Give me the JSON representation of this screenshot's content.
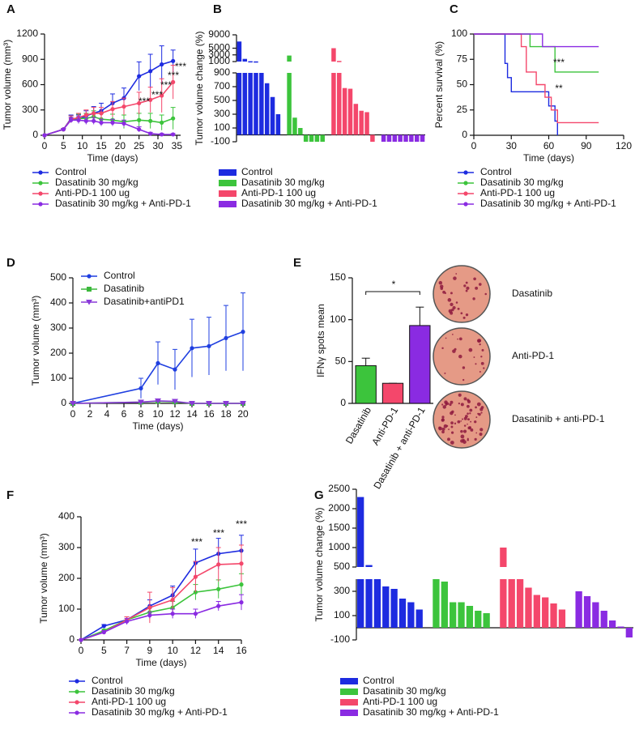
{
  "chart_data": [
    {
      "type": "line",
      "panel": "A",
      "x_label": "Time (days)",
      "y_label": "Tumor volume (mm³)",
      "x": [
        0,
        5,
        7,
        9,
        11,
        13,
        15,
        18,
        21,
        25,
        28,
        31,
        34
      ],
      "xlim": [
        0,
        36
      ],
      "xticks": [
        0,
        5,
        10,
        15,
        20,
        25,
        30,
        35
      ],
      "ylim": [
        0,
        1200
      ],
      "yticks": [
        0,
        300,
        600,
        900,
        1200
      ],
      "legend": "bottom",
      "series": [
        {
          "name": "Control",
          "color": "#1d2be0",
          "values": [
            0,
            70,
            200,
            190,
            230,
            260,
            290,
            380,
            440,
            700,
            760,
            840,
            880
          ],
          "errors": [
            0,
            10,
            40,
            50,
            60,
            80,
            90,
            110,
            120,
            170,
            200,
            220,
            130
          ]
        },
        {
          "name": "Dasatinib 30 mg/kg",
          "color": "#3cc43c",
          "values": [
            0,
            70,
            190,
            200,
            200,
            220,
            190,
            180,
            160,
            180,
            170,
            150,
            200
          ],
          "errors": [
            0,
            10,
            40,
            50,
            60,
            70,
            70,
            70,
            80,
            80,
            90,
            90,
            130
          ]
        },
        {
          "name": "Anti-PD-1 100 ug",
          "color": "#f4476b",
          "values": [
            0,
            70,
            190,
            210,
            240,
            260,
            260,
            310,
            340,
            380,
            420,
            470,
            630
          ],
          "errors": [
            0,
            10,
            40,
            50,
            60,
            70,
            70,
            90,
            100,
            130,
            150,
            200,
            200
          ]
        },
        {
          "name": "Dasatinib 30 mg/kg + Anti-PD-1",
          "color": "#8a2be2",
          "values": [
            0,
            70,
            180,
            180,
            170,
            170,
            150,
            150,
            140,
            70,
            20,
            10,
            10
          ],
          "errors": [
            0,
            10,
            30,
            40,
            40,
            40,
            40,
            40,
            40,
            30,
            15,
            10,
            10
          ]
        }
      ],
      "annotations": [
        "***",
        "***",
        "***",
        "***",
        "***"
      ]
    },
    {
      "type": "waterfall",
      "panel": "B",
      "y_label": "Tumor volume change (%)",
      "legend": "bottom",
      "y_segments": [
        {
          "ylim": [
            -100,
            900
          ],
          "yticks": [
            -100,
            100,
            300,
            500,
            700,
            900
          ]
        },
        {
          "ylim": [
            1000,
            9000
          ],
          "yticks": [
            1000,
            3000,
            5000,
            9000
          ]
        }
      ],
      "series": [
        {
          "name": "Control",
          "color": "#1d2be0",
          "values": [
            7000,
            1800,
            1100,
            1050,
            900,
            750,
            550,
            300
          ]
        },
        {
          "name": "Dasatinib 30 mg/kg",
          "color": "#3cc43c",
          "values": [
            2800,
            250,
            100,
            -100,
            -100,
            -100,
            -100
          ]
        },
        {
          "name": "Anti-PD-1 100 ug",
          "color": "#f4476b",
          "values": [
            5000,
            1200,
            680,
            670,
            450,
            350,
            330,
            -100
          ]
        },
        {
          "name": "Dasatinib 30 mg/kg + Anti-PD-1",
          "color": "#8a2be2",
          "values": [
            -100,
            -100,
            -100,
            -100,
            -100,
            -100,
            -100,
            -100
          ]
        }
      ]
    },
    {
      "type": "step",
      "panel": "C",
      "x_label": "Time (days)",
      "y_label": "Percent survival (%)",
      "xlim": [
        0,
        120
      ],
      "xticks": [
        0,
        30,
        60,
        90,
        120
      ],
      "ylim": [
        0,
        100
      ],
      "yticks": [
        0,
        25,
        50,
        75,
        100
      ],
      "legend": "bottom",
      "series": [
        {
          "name": "Control",
          "color": "#1d2be0",
          "x": [
            0,
            25,
            27,
            30,
            60,
            65,
            67
          ],
          "values": [
            100,
            71,
            57,
            43,
            29,
            14,
            0
          ]
        },
        {
          "name": "Dasatinib 30 mg/kg",
          "color": "#3cc43c",
          "x": [
            0,
            45,
            65,
            100
          ],
          "values": [
            100,
            87.5,
            62.5,
            62.5
          ]
        },
        {
          "name": "Anti-PD-1 100 ug",
          "color": "#f4476b",
          "x": [
            0,
            38,
            42,
            50,
            57,
            62,
            67,
            100
          ],
          "values": [
            100,
            87.5,
            62.5,
            50,
            37.5,
            25,
            12.5,
            12.5
          ]
        },
        {
          "name": "Dasatinib 30 mg/kg + Anti-PD-1",
          "color": "#8a2be2",
          "x": [
            0,
            55,
            100
          ],
          "values": [
            100,
            87.5,
            87.5
          ]
        }
      ],
      "annotations": [
        "***",
        "**"
      ]
    },
    {
      "type": "line",
      "panel": "D",
      "x_label": "Time (days)",
      "y_label": "Tumor volume (mm³)",
      "x": [
        0,
        8,
        10,
        12,
        14,
        16,
        18,
        20
      ],
      "xlim": [
        0,
        20
      ],
      "xticks": [
        0,
        2,
        4,
        6,
        8,
        10,
        12,
        14,
        16,
        18,
        20
      ],
      "ylim": [
        0,
        500
      ],
      "yticks": [
        0,
        100,
        200,
        300,
        400,
        500
      ],
      "legend": "top-left",
      "series": [
        {
          "name": "Control",
          "color": "#1f3fe0",
          "marker": "circle",
          "values": [
            0,
            60,
            160,
            135,
            220,
            228,
            260,
            285
          ],
          "errors": [
            0,
            40,
            85,
            80,
            115,
            115,
            130,
            155
          ]
        },
        {
          "name": "Dasatinib",
          "color": "#3cb83c",
          "marker": "square",
          "values": [
            0,
            5,
            8,
            6,
            0,
            0,
            0,
            0
          ],
          "errors": [
            0,
            3,
            5,
            4,
            0,
            0,
            0,
            0
          ]
        },
        {
          "name": "Dasatinib+antiPD1",
          "color": "#8a3ad8",
          "marker": "triangle",
          "values": [
            0,
            5,
            10,
            8,
            0,
            0,
            0,
            0
          ],
          "errors": [
            0,
            3,
            6,
            5,
            0,
            0,
            0,
            0
          ]
        }
      ]
    },
    {
      "type": "bar",
      "panel": "E",
      "y_label": "IFNγ spots mean",
      "categories": [
        "Dasatinib",
        "Anti-PD-1",
        "Dasatinib + anti-PD-1"
      ],
      "values": [
        45,
        24,
        93
      ],
      "errors": [
        9,
        0,
        22
      ],
      "colors": [
        "#3cc43c",
        "#f4476b",
        "#8a2be2"
      ],
      "ylim": [
        0,
        150
      ],
      "yticks": [
        0,
        50,
        100,
        150
      ],
      "annotations": [
        "*"
      ],
      "images": [
        "Dasatinib",
        "Anti-PD-1",
        "Dasatinib + anti-PD-1"
      ]
    },
    {
      "type": "line",
      "panel": "F",
      "x_label": "Time (days)",
      "y_label": "Tumor volume (mm³)",
      "categories": [
        "0",
        "5",
        "7",
        "9",
        "10",
        "12",
        "14",
        "16"
      ],
      "ylim": [
        0,
        400
      ],
      "yticks": [
        0,
        100,
        200,
        300,
        400
      ],
      "legend": "bottom",
      "series": [
        {
          "name": "Control",
          "color": "#1d2be0",
          "values": [
            0,
            45,
            65,
            110,
            145,
            250,
            280,
            290
          ],
          "errors": [
            0,
            5,
            10,
            20,
            30,
            45,
            50,
            50
          ]
        },
        {
          "name": "Dasatinib 30 mg/kg",
          "color": "#3cc43c",
          "values": [
            0,
            30,
            65,
            90,
            105,
            155,
            165,
            180
          ],
          "errors": [
            0,
            5,
            10,
            15,
            20,
            25,
            30,
            35
          ]
        },
        {
          "name": "Anti-PD-1 100 ug",
          "color": "#f4476b",
          "values": [
            0,
            25,
            65,
            105,
            130,
            205,
            245,
            248
          ],
          "errors": [
            0,
            5,
            10,
            50,
            40,
            50,
            55,
            60
          ]
        },
        {
          "name": "Dasatinib 30 mg/kg + Anti-PD-1",
          "color": "#8a2be2",
          "values": [
            0,
            25,
            60,
            80,
            85,
            85,
            110,
            122
          ],
          "errors": [
            0,
            5,
            10,
            10,
            15,
            15,
            15,
            25
          ]
        }
      ],
      "annotations": [
        "***",
        "***",
        "***"
      ]
    },
    {
      "type": "waterfall",
      "panel": "G",
      "y_label": "Tumor volume change (%)",
      "legend": "bottom",
      "y_segments": [
        {
          "ylim": [
            -100,
            400
          ],
          "yticks": [
            -100,
            100,
            300
          ]
        },
        {
          "ylim": [
            500,
            2500
          ],
          "yticks": [
            500,
            1000,
            1500,
            2000,
            2500
          ]
        }
      ],
      "series": [
        {
          "name": "Control",
          "color": "#1d2be0",
          "values": [
            2300,
            550,
            400,
            340,
            320,
            240,
            210,
            150
          ]
        },
        {
          "name": "Dasatinib 30 mg/kg",
          "color": "#3cc43c",
          "values": [
            400,
            380,
            210,
            210,
            180,
            140,
            120
          ]
        },
        {
          "name": "Anti-PD-1 100 ug",
          "color": "#f4476b",
          "values": [
            1000,
            400,
            400,
            330,
            270,
            250,
            200,
            150
          ]
        },
        {
          "name": "Dasatinib 30 mg/kg + Anti-PD-1",
          "color": "#8a2be2",
          "values": [
            300,
            260,
            210,
            140,
            60,
            10,
            -80
          ]
        }
      ]
    }
  ]
}
